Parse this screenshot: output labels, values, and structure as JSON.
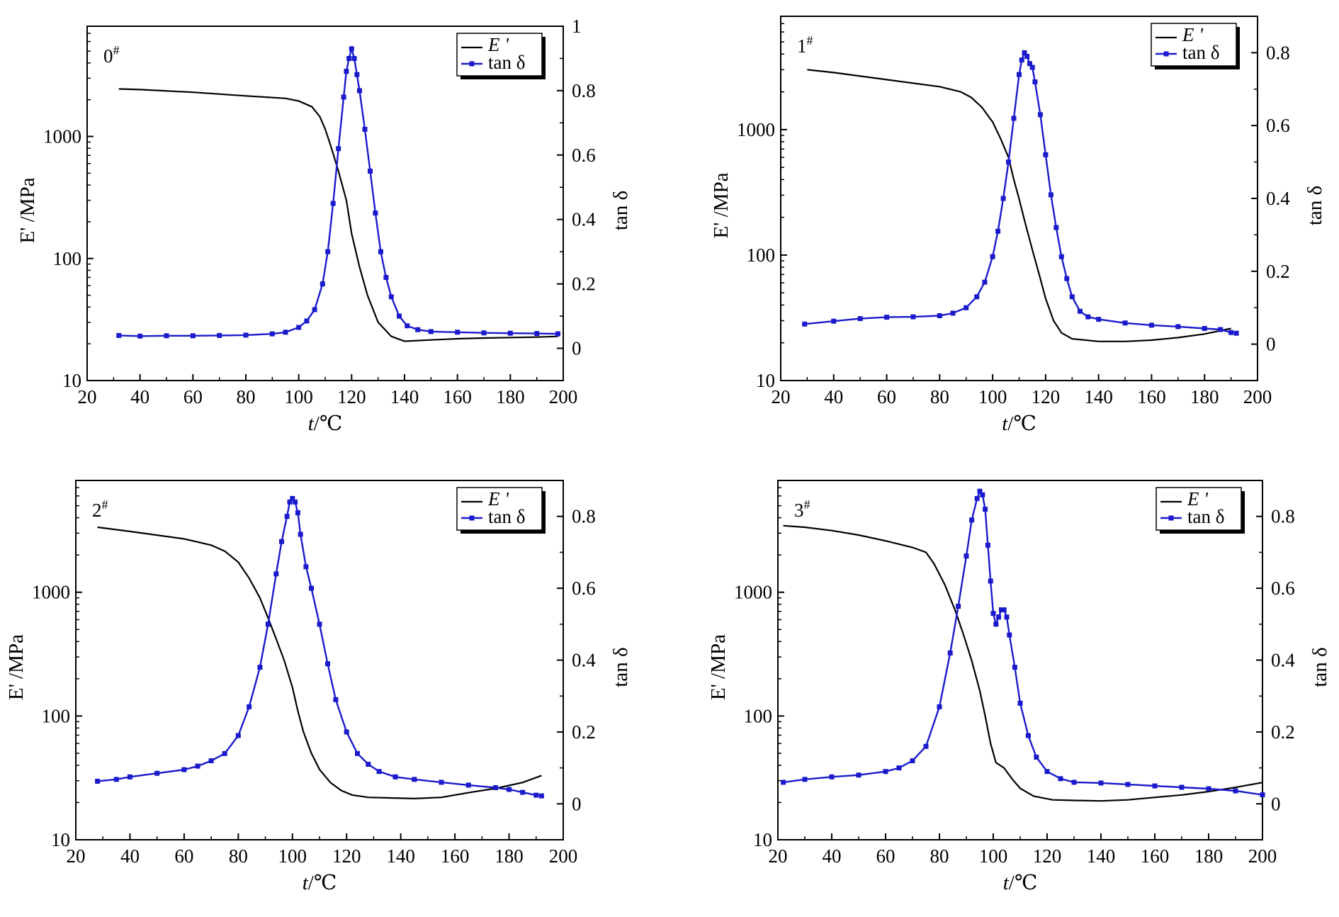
{
  "chart_data": [
    {
      "type": "line",
      "panel_label": "0",
      "panel_label_sup": "#",
      "xlabel_var": "t",
      "xlabel_unit": "/℃",
      "ylabel_left": "E' /MPa",
      "ylabel_right": "tan δ",
      "legend": [
        "E '",
        "tan δ"
      ],
      "legend_position": "top-right",
      "xlim": [
        20,
        200
      ],
      "xticks": [
        20,
        40,
        60,
        80,
        100,
        120,
        140,
        160,
        180,
        200
      ],
      "y_left_scale": "log",
      "y_left_lim": [
        10,
        8000
      ],
      "y_left_ticks": [
        10,
        100,
        1000
      ],
      "y_right_lim": [
        -0.1,
        1.0
      ],
      "y_right_ticks": [
        0,
        0.2,
        0.4,
        0.6,
        0.8,
        1.0
      ],
      "series": [
        {
          "name": "E '",
          "axis": "left",
          "color": "#000000",
          "x": [
            32,
            40,
            60,
            80,
            95,
            100,
            105,
            108,
            110,
            112,
            115,
            118,
            120,
            123,
            126,
            130,
            135,
            140,
            150,
            160,
            170,
            180,
            190,
            198
          ],
          "y": [
            2450,
            2420,
            2300,
            2150,
            2050,
            1950,
            1750,
            1450,
            1150,
            850,
            520,
            300,
            160,
            85,
            50,
            30,
            23,
            21,
            21.5,
            22,
            22.3,
            22.5,
            22.7,
            23
          ]
        },
        {
          "name": "tan δ",
          "axis": "right",
          "color": "#1a1acc",
          "x": [
            32,
            40,
            50,
            60,
            70,
            80,
            90,
            95,
            100,
            103,
            106,
            109,
            111,
            113,
            115,
            117,
            118,
            119,
            120,
            121,
            122,
            123,
            125,
            127,
            129,
            131,
            133,
            135,
            138,
            141,
            145,
            150,
            160,
            170,
            180,
            190,
            198
          ],
          "y": [
            0.04,
            0.038,
            0.039,
            0.039,
            0.04,
            0.041,
            0.045,
            0.05,
            0.065,
            0.085,
            0.12,
            0.2,
            0.3,
            0.45,
            0.62,
            0.78,
            0.86,
            0.9,
            0.93,
            0.9,
            0.85,
            0.8,
            0.68,
            0.55,
            0.42,
            0.3,
            0.22,
            0.16,
            0.1,
            0.07,
            0.058,
            0.052,
            0.05,
            0.048,
            0.047,
            0.046,
            0.045
          ]
        }
      ]
    },
    {
      "type": "line",
      "panel_label": "1",
      "panel_label_sup": "#",
      "xlabel_var": "t",
      "xlabel_unit": "/℃",
      "ylabel_left": "E' /MPa",
      "ylabel_right": "tan δ",
      "legend": [
        "E '",
        "tan δ"
      ],
      "legend_position": "top-right",
      "xlim": [
        20,
        200
      ],
      "xticks": [
        20,
        40,
        60,
        80,
        100,
        120,
        140,
        160,
        180,
        200
      ],
      "y_left_scale": "log",
      "y_left_lim": [
        10,
        8000
      ],
      "y_left_ticks": [
        10,
        100,
        1000
      ],
      "y_right_lim": [
        -0.1,
        0.9
      ],
      "y_right_ticks": [
        0,
        0.2,
        0.4,
        0.6,
        0.8
      ],
      "series": [
        {
          "name": "E '",
          "axis": "left",
          "color": "#000000",
          "x": [
            30,
            40,
            60,
            80,
            88,
            92,
            96,
            100,
            103,
            106,
            108,
            110,
            112,
            115,
            118,
            120,
            123,
            126,
            130,
            140,
            150,
            160,
            170,
            180,
            190
          ],
          "y": [
            3000,
            2850,
            2500,
            2200,
            2000,
            1800,
            1500,
            1150,
            850,
            600,
            400,
            280,
            190,
            110,
            65,
            45,
            30,
            24,
            21.5,
            20.5,
            20.5,
            21,
            22,
            23.5,
            26
          ]
        },
        {
          "name": "tan δ",
          "axis": "right",
          "color": "#1a1acc",
          "x": [
            29,
            40,
            50,
            60,
            70,
            80,
            85,
            90,
            94,
            97,
            100,
            102,
            104,
            106,
            108,
            110,
            111,
            112,
            113,
            114,
            115,
            116,
            118,
            120,
            122,
            124,
            126,
            128,
            130,
            133,
            136,
            140,
            150,
            160,
            170,
            180,
            186,
            190,
            192
          ],
          "y": [
            0.055,
            0.063,
            0.07,
            0.074,
            0.075,
            0.078,
            0.085,
            0.1,
            0.13,
            0.17,
            0.24,
            0.31,
            0.4,
            0.5,
            0.62,
            0.74,
            0.78,
            0.8,
            0.79,
            0.77,
            0.76,
            0.72,
            0.63,
            0.52,
            0.41,
            0.32,
            0.24,
            0.18,
            0.13,
            0.09,
            0.075,
            0.068,
            0.058,
            0.052,
            0.048,
            0.043,
            0.04,
            0.032,
            0.03
          ]
        }
      ]
    },
    {
      "type": "line",
      "panel_label": "2",
      "panel_label_sup": "#",
      "xlabel_var": "t",
      "xlabel_unit": "/℃",
      "ylabel_left": "E' /MPa",
      "ylabel_right": "tan δ",
      "legend": [
        "E '",
        "tan δ"
      ],
      "legend_position": "top-right",
      "xlim": [
        20,
        200
      ],
      "xticks": [
        20,
        40,
        60,
        80,
        100,
        120,
        140,
        160,
        180,
        200
      ],
      "y_left_scale": "log",
      "y_left_lim": [
        10,
        8000
      ],
      "y_left_ticks": [
        10,
        100,
        1000
      ],
      "y_right_lim": [
        -0.1,
        0.9
      ],
      "y_right_ticks": [
        0,
        0.2,
        0.4,
        0.6,
        0.8
      ],
      "series": [
        {
          "name": "E '",
          "axis": "left",
          "color": "#000000",
          "x": [
            28,
            40,
            60,
            70,
            75,
            80,
            84,
            88,
            91,
            94,
            97,
            100,
            102,
            104,
            107,
            110,
            114,
            118,
            122,
            128,
            135,
            145,
            155,
            165,
            175,
            185,
            192
          ],
          "y": [
            3350,
            3100,
            2700,
            2400,
            2150,
            1750,
            1300,
            900,
            620,
            420,
            280,
            170,
            110,
            75,
            50,
            37,
            29,
            25,
            23,
            22,
            21.8,
            21.5,
            22,
            24,
            26,
            29,
            33
          ]
        },
        {
          "name": "tan δ",
          "axis": "right",
          "color": "#1a1acc",
          "x": [
            28,
            35,
            40,
            50,
            60,
            65,
            70,
            75,
            80,
            84,
            88,
            91,
            94,
            96,
            98,
            99,
            100,
            101,
            102,
            103,
            105,
            107,
            110,
            113,
            116,
            120,
            124,
            128,
            132,
            138,
            145,
            155,
            165,
            175,
            180,
            185,
            190,
            192
          ],
          "y": [
            0.063,
            0.068,
            0.075,
            0.085,
            0.095,
            0.105,
            0.12,
            0.14,
            0.19,
            0.27,
            0.38,
            0.5,
            0.64,
            0.73,
            0.8,
            0.84,
            0.85,
            0.84,
            0.81,
            0.75,
            0.66,
            0.6,
            0.5,
            0.39,
            0.29,
            0.2,
            0.14,
            0.11,
            0.09,
            0.075,
            0.068,
            0.06,
            0.052,
            0.045,
            0.04,
            0.032,
            0.024,
            0.022
          ]
        }
      ]
    },
    {
      "type": "line",
      "panel_label": "3",
      "panel_label_sup": "#",
      "xlabel_var": "t",
      "xlabel_unit": "/℃",
      "ylabel_left": "E' /MPa",
      "ylabel_right": "tan δ",
      "legend": [
        "E '",
        "tan δ"
      ],
      "legend_position": "top-right",
      "xlim": [
        20,
        200
      ],
      "xticks": [
        20,
        40,
        60,
        80,
        100,
        120,
        140,
        160,
        180,
        200
      ],
      "y_left_scale": "log",
      "y_left_lim": [
        10,
        8000
      ],
      "y_left_ticks": [
        10,
        100,
        1000
      ],
      "y_right_lim": [
        -0.1,
        0.9
      ],
      "y_right_ticks": [
        0,
        0.2,
        0.4,
        0.6,
        0.8
      ],
      "series": [
        {
          "name": "E '",
          "axis": "left",
          "color": "#000000",
          "x": [
            22,
            30,
            40,
            50,
            60,
            70,
            75,
            78,
            82,
            86,
            89,
            92,
            95,
            97,
            99,
            101,
            104,
            107,
            110,
            115,
            122,
            130,
            140,
            150,
            160,
            170,
            180,
            190,
            200
          ],
          "y": [
            3450,
            3350,
            3150,
            2900,
            2600,
            2300,
            2100,
            1700,
            1150,
            700,
            450,
            280,
            160,
            100,
            60,
            42,
            38,
            31,
            26,
            22.5,
            21,
            20.8,
            20.6,
            21,
            22,
            23,
            24.5,
            26.5,
            29
          ]
        },
        {
          "name": "tan δ",
          "axis": "right",
          "color": "#1a1acc",
          "x": [
            22,
            30,
            40,
            50,
            60,
            65,
            70,
            75,
            80,
            84,
            87,
            90,
            92,
            94,
            95,
            96,
            97,
            98,
            99,
            100,
            101,
            102,
            103,
            104,
            105,
            106,
            108,
            110,
            113,
            116,
            120,
            125,
            130,
            140,
            150,
            160,
            170,
            180,
            190,
            200
          ],
          "y": [
            0.06,
            0.068,
            0.075,
            0.08,
            0.09,
            0.1,
            0.12,
            0.16,
            0.27,
            0.42,
            0.55,
            0.69,
            0.79,
            0.85,
            0.87,
            0.86,
            0.82,
            0.72,
            0.62,
            0.53,
            0.5,
            0.52,
            0.54,
            0.54,
            0.52,
            0.47,
            0.38,
            0.28,
            0.19,
            0.13,
            0.09,
            0.07,
            0.06,
            0.058,
            0.054,
            0.05,
            0.046,
            0.042,
            0.036,
            0.025
          ]
        }
      ]
    }
  ]
}
